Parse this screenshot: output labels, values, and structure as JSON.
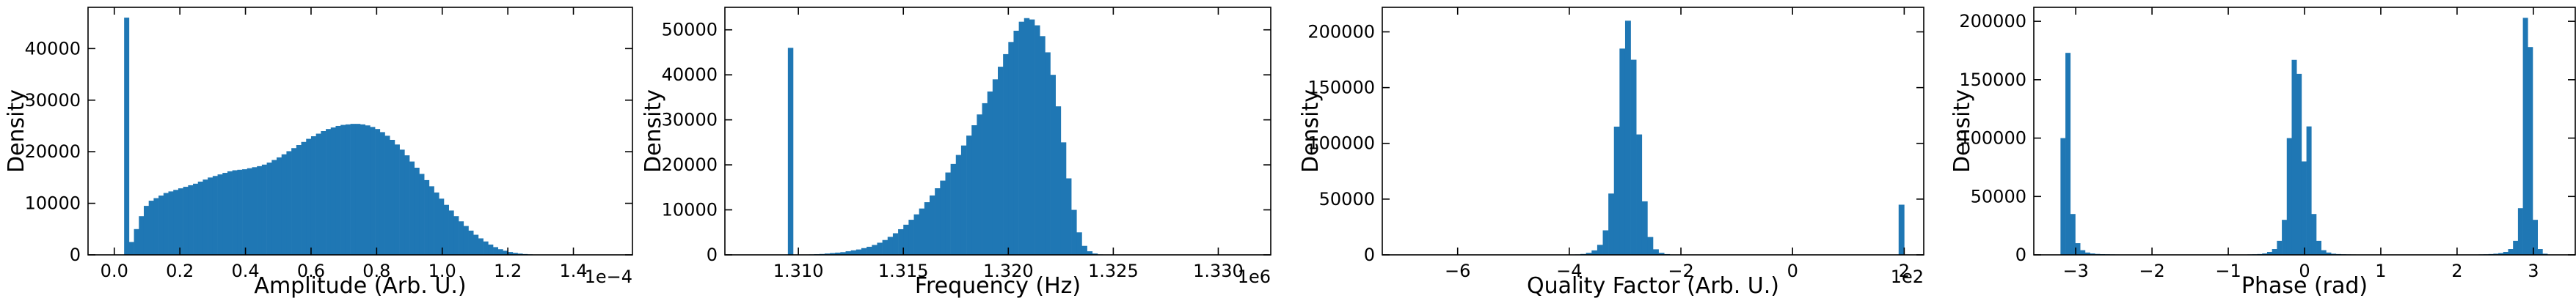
{
  "chart_data": [
    {
      "type": "bar",
      "xlabel": "Amplitude (Arb. U.)",
      "ylabel": "Density",
      "multiplier": "1e−4",
      "color": "#1f77b4",
      "xlim": [
        -0.08,
        1.58
      ],
      "ylim": [
        0,
        48000
      ],
      "xticks": [
        0.0,
        0.2,
        0.4,
        0.6,
        0.8,
        1.0,
        1.2,
        1.4
      ],
      "xtick_labels": [
        "0.0",
        "0.2",
        "0.4",
        "0.6",
        "0.8",
        "1.0",
        "1.2",
        "1.4"
      ],
      "yticks": [
        0,
        10000,
        20000,
        30000,
        40000
      ],
      "ytick_labels": [
        "0",
        "10000",
        "20000",
        "30000",
        "40000"
      ],
      "bin_edges_start": 0.0,
      "bin_width": 0.015,
      "values": [
        0,
        0,
        46000,
        2500,
        5000,
        7500,
        9500,
        10500,
        11000,
        11500,
        12000,
        12300,
        12600,
        12900,
        13200,
        13500,
        13800,
        14200,
        14600,
        15000,
        15300,
        15600,
        15900,
        16200,
        16400,
        16500,
        16600,
        16800,
        17000,
        17200,
        17500,
        17900,
        18400,
        18900,
        19500,
        20100,
        20700,
        21300,
        21900,
        22500,
        23000,
        23500,
        24000,
        24400,
        24700,
        25000,
        25200,
        25300,
        25400,
        25400,
        25300,
        25100,
        24800,
        24400,
        23800,
        23100,
        22300,
        21400,
        20400,
        19300,
        18100,
        16900,
        15700,
        14500,
        13300,
        12100,
        10900,
        9700,
        8600,
        7500,
        6500,
        5600,
        4700,
        3900,
        3200,
        2600,
        2000,
        1500,
        1100,
        800,
        550,
        380,
        250,
        160,
        100,
        60,
        35,
        20,
        10,
        5
      ]
    },
    {
      "type": "bar",
      "xlabel": "Frequency (Hz)",
      "ylabel": "Density",
      "multiplier": "1e6",
      "color": "#1f77b4",
      "xlim": [
        1.3065,
        1.3325
      ],
      "ylim": [
        0,
        55000
      ],
      "xticks": [
        1.31,
        1.315,
        1.32,
        1.325,
        1.33
      ],
      "xtick_labels": [
        "1.310",
        "1.315",
        "1.320",
        "1.325",
        "1.330"
      ],
      "yticks": [
        0,
        10000,
        20000,
        30000,
        40000,
        50000
      ],
      "ytick_labels": [
        "0",
        "10000",
        "20000",
        "30000",
        "40000",
        "50000"
      ],
      "bin_edges_start": 1.3075,
      "bin_width": 0.00025,
      "values": [
        0,
        0,
        0,
        0,
        0,
        0,
        0,
        0,
        46000,
        0,
        0,
        0,
        100,
        150,
        200,
        300,
        400,
        500,
        600,
        800,
        1000,
        1200,
        1500,
        1800,
        2200,
        2700,
        3300,
        4000,
        4800,
        5700,
        6700,
        7800,
        9000,
        10300,
        11700,
        13200,
        14800,
        16500,
        18300,
        20200,
        22200,
        24300,
        26500,
        28800,
        31200,
        33700,
        36300,
        39000,
        41800,
        44600,
        47300,
        49800,
        51800,
        52600,
        52300,
        51000,
        48600,
        45000,
        40000,
        33000,
        25000,
        17000,
        10000,
        5000,
        2000,
        800,
        300,
        100,
        50,
        20,
        10,
        0
      ]
    },
    {
      "type": "bar",
      "xlabel": "Quality Factor (Arb. U.)",
      "ylabel": "Density",
      "multiplier": "1e2",
      "color": "#1f77b4",
      "xlim": [
        -7.35,
        2.35
      ],
      "ylim": [
        0,
        222000
      ],
      "xticks": [
        -6,
        -4,
        -2,
        0,
        2
      ],
      "xtick_labels": [
        "−6",
        "−4",
        "−2",
        "0",
        "2"
      ],
      "yticks": [
        0,
        50000,
        100000,
        150000,
        200000
      ],
      "ytick_labels": [
        "0",
        "50000",
        "100000",
        "150000",
        "200000"
      ],
      "bin_edges_start": -4.0,
      "bin_width": 0.1,
      "values": [
        200,
        400,
        800,
        1800,
        4000,
        9000,
        22000,
        55000,
        115000,
        185000,
        210000,
        175000,
        108000,
        48000,
        16000,
        5000,
        1800,
        700,
        300,
        120,
        60,
        30,
        15,
        10,
        5,
        5,
        5,
        0,
        0,
        0,
        0,
        0,
        0,
        0,
        0,
        0,
        0,
        0,
        0,
        0,
        0,
        0,
        0,
        0,
        0,
        0,
        0,
        0,
        0,
        0,
        0,
        0,
        0,
        0,
        0,
        0,
        0,
        0,
        0,
        45000
      ]
    },
    {
      "type": "bar",
      "xlabel": "Phase (rad)",
      "ylabel": "Density",
      "multiplier": "",
      "color": "#1f77b4",
      "xlim": [
        -3.55,
        3.55
      ],
      "ylim": [
        0,
        212000
      ],
      "xticks": [
        -3,
        -2,
        -1,
        0,
        1,
        2,
        3
      ],
      "xtick_labels": [
        "−3",
        "−2",
        "−1",
        "0",
        "1",
        "2",
        "3"
      ],
      "yticks": [
        0,
        50000,
        100000,
        150000,
        200000
      ],
      "ytick_labels": [
        "0",
        "50000",
        "100000",
        "150000",
        "200000"
      ],
      "bin_edges_start": -3.2,
      "bin_width": 0.0645,
      "values": [
        100000,
        173000,
        35000,
        10000,
        4000,
        2000,
        1200,
        800,
        600,
        500,
        400,
        350,
        300,
        300,
        300,
        300,
        300,
        300,
        300,
        300,
        300,
        300,
        300,
        300,
        300,
        300,
        300,
        300,
        300,
        300,
        300,
        300,
        300,
        300,
        300,
        300,
        300,
        300,
        400,
        500,
        700,
        1200,
        2500,
        5000,
        12000,
        30000,
        100000,
        167000,
        155000,
        80000,
        110000,
        35000,
        12000,
        4000,
        2000,
        1000,
        700,
        500,
        400,
        350,
        300,
        300,
        300,
        300,
        300,
        300,
        300,
        300,
        300,
        300,
        300,
        300,
        300,
        300,
        300,
        300,
        300,
        300,
        300,
        300,
        300,
        300,
        300,
        300,
        300,
        400,
        500,
        700,
        1000,
        1500,
        2500,
        5000,
        12000,
        40000,
        203000,
        178000,
        30000,
        5000,
        1000
      ]
    }
  ]
}
